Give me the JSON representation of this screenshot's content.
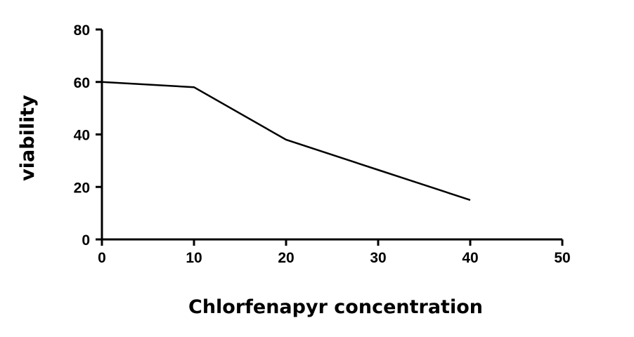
{
  "chart_data": {
    "type": "line",
    "title": "",
    "xlabel": "Chlorfenapyr concentration",
    "ylabel": "viability",
    "xlim": [
      0,
      50
    ],
    "ylim": [
      0,
      80
    ],
    "xticks": [
      0,
      10,
      20,
      30,
      40,
      50
    ],
    "yticks": [
      0,
      20,
      40,
      60,
      80
    ],
    "grid": false,
    "series": [
      {
        "x": [
          0,
          10,
          20,
          30,
          40
        ],
        "y": [
          60,
          58,
          38,
          26.5,
          15
        ],
        "color": "#000000"
      }
    ]
  }
}
